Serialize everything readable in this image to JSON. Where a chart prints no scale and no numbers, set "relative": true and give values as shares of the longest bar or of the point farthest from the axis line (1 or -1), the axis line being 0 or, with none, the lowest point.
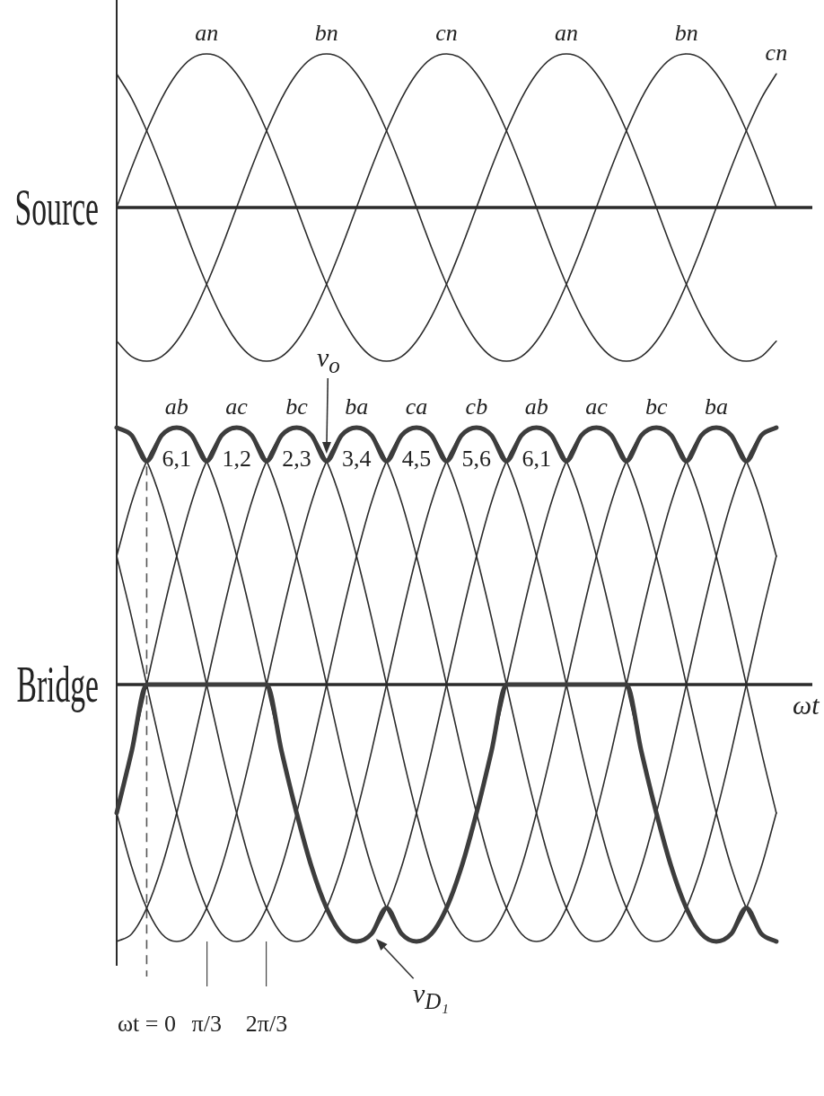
{
  "chart_data": [
    {
      "type": "line",
      "ylabel": "Source",
      "relative": true,
      "tick_labels": false,
      "xlim": [
        -0.524,
        11.625
      ],
      "x": [
        -0.524,
        -0.262,
        0,
        0.262,
        0.524,
        0.785,
        1.047,
        1.309,
        1.571,
        1.833,
        2.094,
        2.356,
        2.618,
        2.88,
        3.142,
        3.403,
        3.665,
        3.927,
        4.189,
        4.451,
        4.712,
        4.974,
        5.236,
        5.498,
        5.76,
        6.021,
        6.283,
        6.545,
        6.807,
        7.069,
        7.33,
        7.592,
        7.854,
        8.116,
        8.378,
        8.639,
        8.901,
        9.163,
        9.425,
        9.687,
        9.948,
        10.21,
        10.472,
        10.734,
        10.996
      ],
      "series": [
        {
          "color": "#2b2b2b",
          "values": [
            0,
            0.26,
            0.5,
            0.71,
            0.87,
            0.97,
            1,
            0.97,
            0.87,
            0.71,
            0.5,
            0.26,
            0,
            -0.26,
            -0.5,
            -0.71,
            -0.87,
            -0.97,
            -1,
            -0.97,
            -0.87,
            -0.71,
            -0.5,
            -0.26,
            0,
            0.26,
            0.5,
            0.71,
            0.87,
            0.97,
            1,
            0.97,
            0.87,
            0.71,
            0.5,
            0.26,
            0,
            -0.26,
            -0.5,
            -0.71,
            -0.87,
            -0.97,
            -1,
            -0.97,
            -0.87
          ]
        },
        {
          "color": "#2b2b2b",
          "values": [
            -0.87,
            -0.97,
            -1,
            -0.97,
            -0.87,
            -0.71,
            -0.5,
            -0.26,
            0,
            0.26,
            0.5,
            0.71,
            0.87,
            0.97,
            1,
            0.97,
            0.87,
            0.71,
            0.5,
            0.26,
            0,
            -0.26,
            -0.5,
            -0.71,
            -0.87,
            -0.97,
            -1,
            -0.97,
            -0.87,
            -0.71,
            -0.5,
            -0.26,
            0,
            0.26,
            0.5,
            0.71,
            0.87,
            0.97,
            1,
            0.97,
            0.87,
            0.71,
            0.5,
            0.26,
            0
          ]
        },
        {
          "color": "#2b2b2b",
          "values": [
            0.87,
            0.71,
            0.5,
            0.26,
            0,
            -0.26,
            -0.5,
            -0.71,
            -0.87,
            -0.97,
            -1,
            -0.97,
            -0.87,
            -0.71,
            -0.5,
            -0.26,
            0,
            0.26,
            0.5,
            0.71,
            0.87,
            0.97,
            1,
            0.97,
            0.87,
            0.71,
            0.5,
            0.26,
            0,
            -0.26,
            -0.5,
            -0.71,
            -0.87,
            -0.97,
            -1,
            -0.97,
            -0.87,
            -0.71,
            -0.5,
            -0.26,
            0,
            0.26,
            0.5,
            0.71,
            0.87
          ]
        }
      ],
      "annotations": [
        {
          "text": "an",
          "x": 1.047,
          "y": 1
        },
        {
          "text": "bn",
          "x": 3.142,
          "y": 1
        },
        {
          "text": "cn",
          "x": 5.236,
          "y": 1
        },
        {
          "text": "an",
          "x": 7.33,
          "y": 1
        },
        {
          "text": "bn",
          "x": 9.425,
          "y": 1
        },
        {
          "text": "cn",
          "x": 10.996,
          "y": 0.87
        }
      ]
    },
    {
      "type": "line",
      "ylabel": "Bridge",
      "xlabel": "ωt",
      "relative": true,
      "xlim": [
        -0.524,
        11.625
      ],
      "xticks": [
        {
          "value": 0,
          "label": "ωt = 0"
        },
        {
          "value": 1.047,
          "label": "π/3"
        },
        {
          "value": 2.094,
          "label": "2π/3"
        }
      ],
      "x": [
        -0.524,
        -0.262,
        0,
        0.262,
        0.524,
        0.785,
        1.047,
        1.309,
        1.571,
        1.833,
        2.094,
        2.356,
        2.618,
        2.88,
        3.142,
        3.403,
        3.665,
        3.927,
        4.189,
        4.451,
        4.712,
        4.974,
        5.236,
        5.498,
        5.76,
        6.021,
        6.283,
        6.545,
        6.807,
        7.069,
        7.33,
        7.592,
        7.854,
        8.116,
        8.378,
        8.639,
        8.901,
        9.163,
        9.425,
        9.687,
        9.948,
        10.21,
        10.472,
        10.734,
        10.996
      ],
      "series": [
        {
          "color": "#2b2b2b",
          "values": [
            0.5,
            0.71,
            0.87,
            0.97,
            1,
            0.97,
            0.87,
            0.71,
            0.5,
            0.26,
            0,
            -0.26,
            -0.5,
            -0.71,
            -0.87,
            -0.97,
            -1,
            -0.97,
            -0.87,
            -0.71,
            -0.5,
            -0.26,
            0,
            0.26,
            0.5,
            0.71,
            0.87,
            0.97,
            1,
            0.97,
            0.87,
            0.71,
            0.5,
            0.26,
            0,
            -0.26,
            -0.5,
            -0.71,
            -0.87,
            -0.97,
            -1,
            -0.97,
            -0.87,
            -0.71,
            -0.5
          ]
        },
        {
          "color": "#2b2b2b",
          "values": [
            -0.5,
            -0.26,
            0,
            0.26,
            0.5,
            0.71,
            0.87,
            0.97,
            1,
            0.97,
            0.87,
            0.71,
            0.5,
            0.26,
            0,
            -0.26,
            -0.5,
            -0.71,
            -0.87,
            -0.97,
            -1,
            -0.97,
            -0.87,
            -0.71,
            -0.5,
            -0.26,
            0,
            0.26,
            0.5,
            0.71,
            0.87,
            0.97,
            1,
            0.97,
            0.87,
            0.71,
            0.5,
            0.26,
            0,
            -0.26,
            -0.5,
            -0.71,
            -0.87,
            -0.97,
            -1
          ]
        },
        {
          "color": "#2b2b2b",
          "values": [
            -1,
            -0.97,
            -0.87,
            -0.71,
            -0.5,
            -0.26,
            0,
            0.26,
            0.5,
            0.71,
            0.87,
            0.97,
            1,
            0.97,
            0.87,
            0.71,
            0.5,
            0.26,
            0,
            -0.26,
            -0.5,
            -0.71,
            -0.87,
            -0.97,
            -1,
            -0.97,
            -0.87,
            -0.71,
            -0.5,
            -0.26,
            0,
            0.26,
            0.5,
            0.71,
            0.87,
            0.97,
            1,
            0.97,
            0.87,
            0.71,
            0.5,
            0.26,
            0,
            -0.26,
            -0.5
          ]
        },
        {
          "color": "#2b2b2b",
          "values": [
            -0.5,
            -0.71,
            -0.87,
            -0.97,
            -1,
            -0.97,
            -0.87,
            -0.71,
            -0.5,
            -0.26,
            0,
            0.26,
            0.5,
            0.71,
            0.87,
            0.97,
            1,
            0.97,
            0.87,
            0.71,
            0.5,
            0.26,
            0,
            -0.26,
            -0.5,
            -0.71,
            -0.87,
            -0.97,
            -1,
            -0.97,
            -0.87,
            -0.71,
            -0.5,
            -0.26,
            0,
            0.26,
            0.5,
            0.71,
            0.87,
            0.97,
            1,
            0.97,
            0.87,
            0.71,
            0.5
          ]
        },
        {
          "color": "#2b2b2b",
          "values": [
            0.5,
            0.26,
            0,
            -0.26,
            -0.5,
            -0.71,
            -0.87,
            -0.97,
            -1,
            -0.97,
            -0.87,
            -0.71,
            -0.5,
            -0.26,
            0,
            0.26,
            0.5,
            0.71,
            0.87,
            0.97,
            1,
            0.97,
            0.87,
            0.71,
            0.5,
            0.26,
            0,
            -0.26,
            -0.5,
            -0.71,
            -0.87,
            -0.97,
            -1,
            -0.97,
            -0.87,
            -0.71,
            -0.5,
            -0.26,
            0,
            0.26,
            0.5,
            0.71,
            0.87,
            0.97,
            1
          ]
        },
        {
          "color": "#2b2b2b",
          "values": [
            1,
            0.97,
            0.87,
            0.71,
            0.5,
            0.26,
            0,
            -0.26,
            -0.5,
            -0.71,
            -0.87,
            -0.97,
            -1,
            -0.97,
            -0.87,
            -0.71,
            -0.5,
            -0.26,
            0,
            0.26,
            0.5,
            0.71,
            0.87,
            0.97,
            1,
            0.97,
            0.87,
            0.71,
            0.5,
            0.26,
            0,
            -0.26,
            -0.5,
            -0.71,
            -0.87,
            -0.97,
            -1,
            -0.97,
            -0.87,
            -0.71,
            -0.5,
            -0.26,
            0,
            0.26,
            0.5
          ]
        },
        {
          "name": "v$_{o}$",
          "color": "#3d3d3d",
          "values": [
            1,
            0.97,
            0.87,
            0.97,
            1,
            0.97,
            0.87,
            0.97,
            1,
            0.97,
            0.87,
            0.97,
            1,
            0.97,
            0.87,
            0.97,
            1,
            0.97,
            0.87,
            0.97,
            1,
            0.97,
            0.87,
            0.97,
            1,
            0.97,
            0.87,
            0.97,
            1,
            0.97,
            0.87,
            0.97,
            1,
            0.97,
            0.87,
            0.97,
            1,
            0.97,
            0.87,
            0.97,
            1,
            0.97,
            0.87,
            0.97,
            1
          ]
        },
        {
          "name": "v$_{D₁}$",
          "color": "#3d3d3d",
          "values": [
            -0.5,
            -0.26,
            0,
            0,
            0,
            0,
            0,
            0,
            0,
            0,
            0,
            -0.26,
            -0.5,
            -0.71,
            -0.87,
            -0.97,
            -1,
            -0.97,
            -0.87,
            -0.97,
            -1,
            -0.97,
            -0.87,
            -0.71,
            -0.5,
            -0.26,
            0,
            0,
            0,
            0,
            0,
            0,
            0,
            0,
            0,
            -0.26,
            -0.5,
            -0.71,
            -0.87,
            -0.97,
            -1,
            -0.97,
            -0.87,
            -0.97,
            -1
          ]
        }
      ],
      "ref_lines": [
        {
          "axis": "x",
          "value": 0,
          "line_style": "dashed",
          "color": "#555555"
        }
      ],
      "annotations": [
        {
          "text": "ab",
          "x": 0.524,
          "y": 1
        },
        {
          "text": "ac",
          "x": 1.571,
          "y": 1
        },
        {
          "text": "bc",
          "x": 2.618,
          "y": 1
        },
        {
          "text": "ba",
          "x": 3.665,
          "y": 1
        },
        {
          "text": "ca",
          "x": 4.712,
          "y": 1
        },
        {
          "text": "cb",
          "x": 5.76,
          "y": 1
        },
        {
          "text": "ab",
          "x": 6.807,
          "y": 1
        },
        {
          "text": "ac",
          "x": 7.854,
          "y": 1
        },
        {
          "text": "bc",
          "x": 8.901,
          "y": 1
        },
        {
          "text": "ba",
          "x": 9.948,
          "y": 1
        },
        "6,1",
        "1,2",
        "2,3",
        "3,4",
        "4,5",
        "5,6",
        "6,1"
      ]
    }
  ]
}
